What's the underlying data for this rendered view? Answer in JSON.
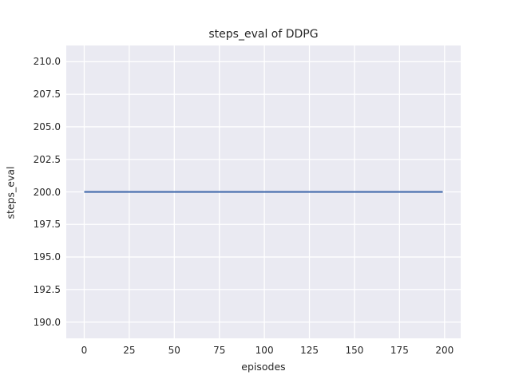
{
  "chart_data": {
    "type": "line",
    "title": "steps_eval of DDPG",
    "xlabel": "episodes",
    "ylabel": "steps_eval",
    "xlim": [
      -9.95,
      208.95
    ],
    "ylim": [
      188.75,
      211.25
    ],
    "xticks": [
      0,
      25,
      50,
      75,
      100,
      125,
      150,
      175,
      200
    ],
    "xtick_labels": [
      "0",
      "25",
      "50",
      "75",
      "100",
      "125",
      "150",
      "175",
      "200"
    ],
    "yticks": [
      190.0,
      192.5,
      195.0,
      197.5,
      200.0,
      202.5,
      205.0,
      207.5,
      210.0
    ],
    "ytick_labels": [
      "190.0",
      "192.5",
      "195.0",
      "197.5",
      "200.0",
      "202.5",
      "205.0",
      "207.5",
      "210.0"
    ],
    "grid": true,
    "legend": "none",
    "series": [
      {
        "name": "DDPG",
        "description": "steps_eval is constant at 200 for every episode from 0 to 199",
        "x": [
          0,
          199
        ],
        "y": [
          200.0,
          200.0
        ],
        "color": "#4c72b0",
        "linewidth": 2.2
      }
    ],
    "colors": {
      "figure_background": "#ffffff",
      "axes_background": "#eaeaf2",
      "grid": "#ffffff",
      "text": "#262626"
    }
  }
}
